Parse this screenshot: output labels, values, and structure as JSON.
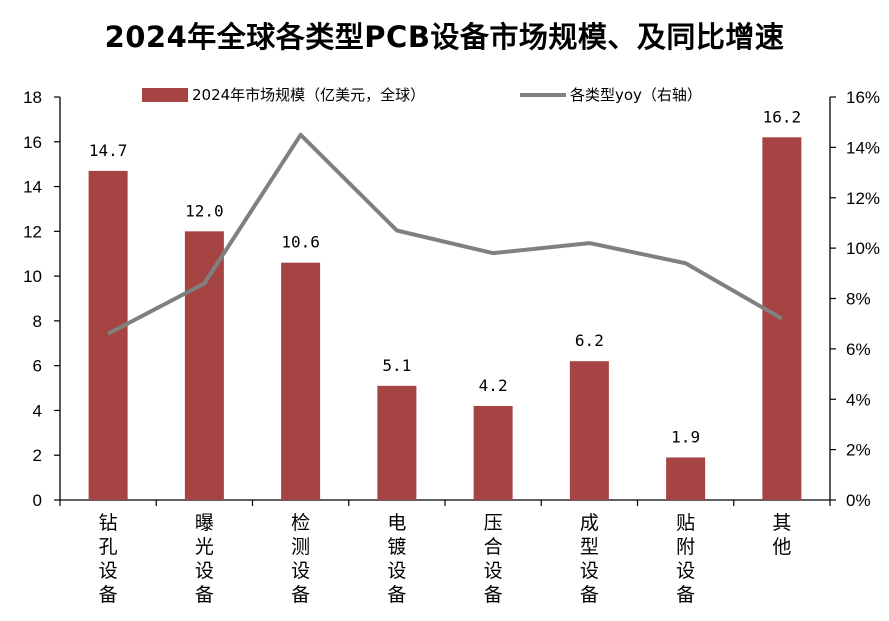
{
  "title": "2024年全球各类型PCB设备市场规模、及同比增速",
  "chart_data": {
    "type": "bar",
    "categories": [
      "钻孔设备",
      "曝光设备",
      "检测设备",
      "电镀设备",
      "压合设备",
      "成型设备",
      "贴附设备",
      "其他"
    ],
    "series": [
      {
        "name": "2024年市场规模（亿美元，全球）",
        "type": "bar",
        "axis": "left",
        "color": "#a64444",
        "values": [
          14.7,
          12.0,
          10.6,
          5.1,
          4.2,
          6.2,
          1.9,
          16.2
        ],
        "labels": [
          "14.7",
          "12.0",
          "10.6",
          "5.1",
          "4.2",
          "6.2",
          "1.9",
          "16.2"
        ]
      },
      {
        "name": "各类型yoy（右轴）",
        "type": "line",
        "axis": "right",
        "color": "#808080",
        "values": [
          6.6,
          8.6,
          14.5,
          10.7,
          9.8,
          10.2,
          9.4,
          7.2
        ]
      }
    ],
    "ylim": [
      0,
      18
    ],
    "y2lim": [
      0,
      16
    ],
    "yticks": [
      "0",
      "2",
      "4",
      "6",
      "8",
      "10",
      "12",
      "14",
      "16",
      "18"
    ],
    "y2ticks": [
      "0%",
      "2%",
      "4%",
      "6%",
      "8%",
      "10%",
      "12%",
      "14%",
      "16%"
    ],
    "legend": "top-center",
    "grid": false
  }
}
